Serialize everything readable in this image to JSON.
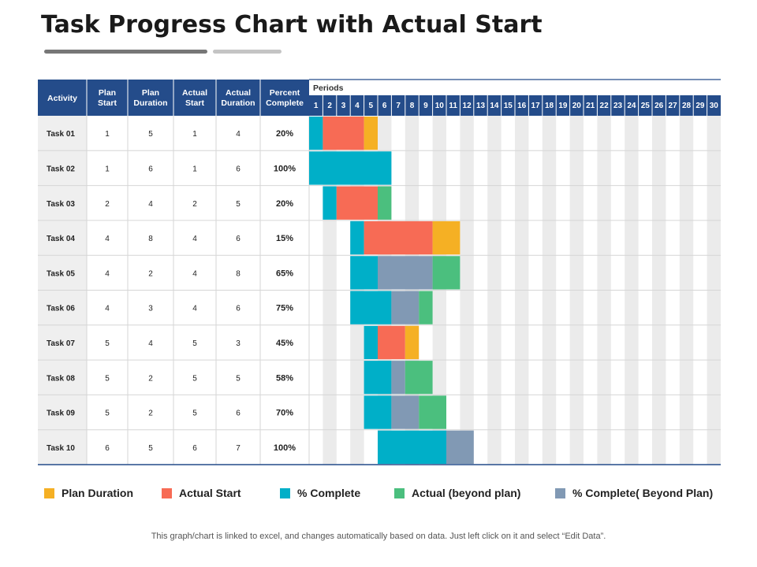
{
  "title": "Task Progress Chart with Actual Start",
  "footnote": "This graph/chart is linked to excel, and changes automatically based on data. Just left click on it and select “Edit Data”.",
  "table": {
    "columns": [
      "Activity",
      "Plan Start",
      "Plan Duration",
      "Actual Start",
      "Actual Duration",
      "Percent Complete"
    ],
    "periods_label": "Periods"
  },
  "colors": {
    "header": "#244c8a",
    "plan_duration": "#f5b024",
    "actual_start": "#f76b55",
    "pct_complete": "#00afc8",
    "actual_beyond": "#4bbf7e",
    "pct_beyond": "#8199b4",
    "stripe": "#ebebeb",
    "activity_bg": "#efefef"
  },
  "legend": [
    {
      "label": "Plan Duration",
      "color": "#f5b024"
    },
    {
      "label": "Actual  Start",
      "color": "#f76b55"
    },
    {
      "label": "% Complete",
      "color": "#00afc8"
    },
    {
      "label": "Actual  (beyond plan)",
      "color": "#4bbf7e"
    },
    {
      "label": "% Complete( Beyond Plan)",
      "color": "#8199b4"
    }
  ],
  "chart_data": {
    "type": "gantt",
    "periods": [
      "1",
      "2",
      "3",
      "4",
      "5",
      "6",
      "7",
      "8",
      "9",
      "10",
      "11",
      "12",
      "13",
      "14",
      "15",
      "16",
      "17",
      "18",
      "19",
      "20",
      "21",
      "22",
      "23",
      "24",
      "25",
      "26",
      "27",
      "28",
      "29",
      "30"
    ],
    "tasks": [
      {
        "activity": "Task 01",
        "plan_start": "1",
        "plan_duration": "5",
        "actual_start": "1",
        "actual_duration": "4",
        "percent_complete": "20%",
        "segments": [
          [
            "pct_complete",
            1,
            2
          ],
          [
            "actual_start",
            2,
            5
          ],
          [
            "plan_duration",
            5,
            6
          ]
        ]
      },
      {
        "activity": "Task 02",
        "plan_start": "1",
        "plan_duration": "6",
        "actual_start": "1",
        "actual_duration": "6",
        "percent_complete": "100%",
        "segments": [
          [
            "pct_complete",
            1,
            7
          ]
        ]
      },
      {
        "activity": "Task 03",
        "plan_start": "2",
        "plan_duration": "4",
        "actual_start": "2",
        "actual_duration": "5",
        "percent_complete": "20%",
        "segments": [
          [
            "pct_complete",
            2,
            3
          ],
          [
            "actual_start",
            3,
            6
          ],
          [
            "actual_beyond",
            6,
            7
          ]
        ]
      },
      {
        "activity": "Task 04",
        "plan_start": "4",
        "plan_duration": "8",
        "actual_start": "4",
        "actual_duration": "6",
        "percent_complete": "15%",
        "segments": [
          [
            "pct_complete",
            4,
            5
          ],
          [
            "actual_start",
            5,
            10
          ],
          [
            "plan_duration",
            10,
            12
          ]
        ]
      },
      {
        "activity": "Task 05",
        "plan_start": "4",
        "plan_duration": "2",
        "actual_start": "4",
        "actual_duration": "8",
        "percent_complete": "65%",
        "segments": [
          [
            "pct_complete",
            4,
            6
          ],
          [
            "pct_beyond",
            6,
            10
          ],
          [
            "actual_beyond",
            10,
            12
          ]
        ]
      },
      {
        "activity": "Task 06",
        "plan_start": "4",
        "plan_duration": "3",
        "actual_start": "4",
        "actual_duration": "6",
        "percent_complete": "75%",
        "segments": [
          [
            "pct_complete",
            4,
            7
          ],
          [
            "pct_beyond",
            7,
            9
          ],
          [
            "actual_beyond",
            9,
            10
          ]
        ]
      },
      {
        "activity": "Task 07",
        "plan_start": "5",
        "plan_duration": "4",
        "actual_start": "5",
        "actual_duration": "3",
        "percent_complete": "45%",
        "segments": [
          [
            "pct_complete",
            5,
            6
          ],
          [
            "actual_start",
            6,
            8
          ],
          [
            "plan_duration",
            8,
            9
          ]
        ]
      },
      {
        "activity": "Task 08",
        "plan_start": "5",
        "plan_duration": "2",
        "actual_start": "5",
        "actual_duration": "5",
        "percent_complete": "58%",
        "segments": [
          [
            "pct_complete",
            5,
            7
          ],
          [
            "pct_beyond",
            7,
            8
          ],
          [
            "actual_beyond",
            8,
            10
          ]
        ]
      },
      {
        "activity": "Task 09",
        "plan_start": "5",
        "plan_duration": "2",
        "actual_start": "5",
        "actual_duration": "6",
        "percent_complete": "70%",
        "segments": [
          [
            "pct_complete",
            5,
            7
          ],
          [
            "pct_beyond",
            7,
            9
          ],
          [
            "actual_beyond",
            9,
            11
          ]
        ]
      },
      {
        "activity": "Task 10",
        "plan_start": "6",
        "plan_duration": "5",
        "actual_start": "6",
        "actual_duration": "7",
        "percent_complete": "100%",
        "segments": [
          [
            "pct_complete",
            6,
            11
          ],
          [
            "pct_beyond",
            11,
            13
          ]
        ]
      }
    ]
  }
}
